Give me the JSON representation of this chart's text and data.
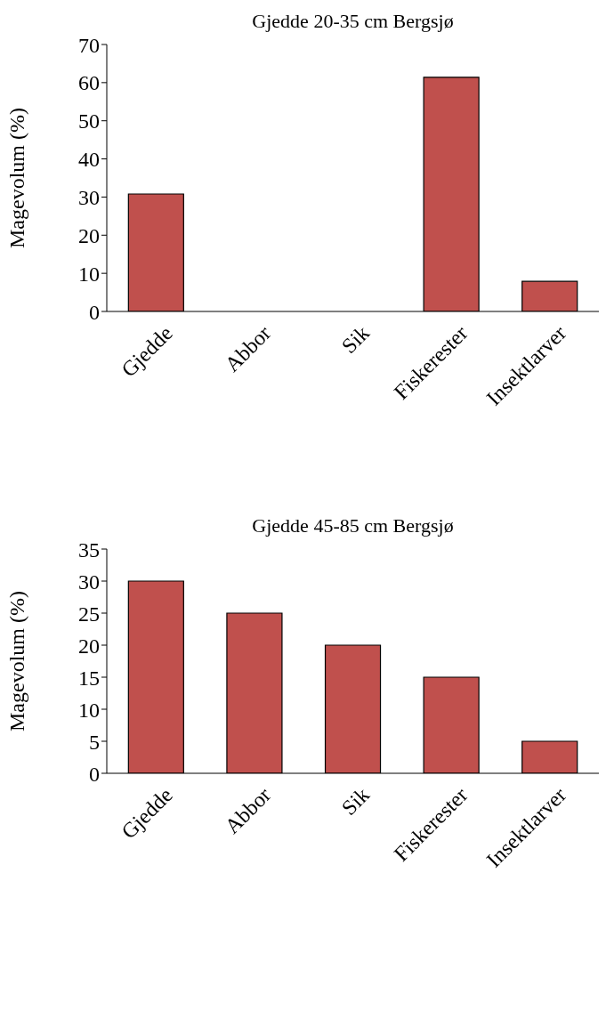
{
  "chart_data": [
    {
      "type": "bar",
      "title": "Gjedde 20-35 cm Bergsjø",
      "ylabel": "Magevolum (%)",
      "categories": [
        "Gjedde",
        "Abbor",
        "Sik",
        "Fiskerester",
        "Insektlarver"
      ],
      "values": [
        30.8,
        0,
        0,
        61.4,
        7.9
      ],
      "color": "#c0504d",
      "ylim": [
        0,
        70
      ],
      "yticks": [
        0,
        10,
        20,
        30,
        40,
        50,
        60,
        70
      ]
    },
    {
      "type": "bar",
      "title": "Gjedde 45-85 cm Bergsjø",
      "ylabel": "Magevolum (%)",
      "categories": [
        "Gjedde",
        "Abbor",
        "Sik",
        "Fiskerester",
        "Insektlarver"
      ],
      "values": [
        30,
        25,
        20,
        15,
        5
      ],
      "color": "#c0504d",
      "ylim": [
        0,
        35
      ],
      "yticks": [
        0,
        5,
        10,
        15,
        20,
        25,
        30,
        35
      ]
    }
  ]
}
